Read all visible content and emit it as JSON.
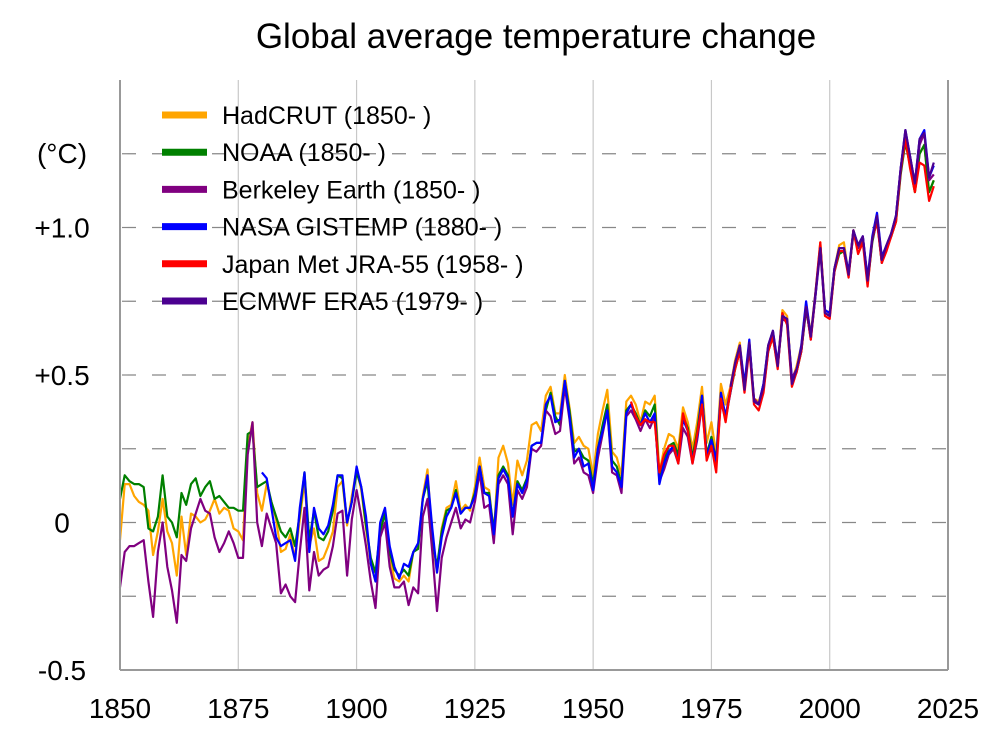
{
  "chart_data": {
    "type": "line",
    "title": "Global average temperature change",
    "ylabel": "(°C)",
    "xlim": [
      1850,
      2025
    ],
    "ylim": [
      -0.5,
      1.5
    ],
    "x_ticks": [
      1850,
      1875,
      1900,
      1925,
      1950,
      1975,
      2000,
      2025
    ],
    "x_tick_labels": [
      "1850",
      "1875",
      "1900",
      "1925",
      "1950",
      "1975",
      "2000",
      "2025"
    ],
    "y_ticks": [
      -0.5,
      0,
      0.5,
      1.0
    ],
    "y_tick_labels": [
      "-0.5",
      "0",
      "+0.5",
      "+1.0"
    ],
    "grid": "on (dashed horizontal every 0.25, solid vertical every 25 years)",
    "legend": "top-left",
    "series": [
      {
        "name": "HadCRUT (1850- )",
        "color": "#ffa500",
        "start_year": 1850,
        "values": [
          -0.06,
          0.13,
          0.13,
          0.09,
          0.07,
          0.06,
          0.04,
          -0.11,
          -0.03,
          0.08,
          -0.03,
          -0.07,
          -0.18,
          0.02,
          -0.11,
          0.03,
          0.02,
          0.0,
          0.01,
          0.04,
          0.08,
          0.03,
          0.05,
          0.04,
          -0.02,
          -0.03,
          -0.06,
          0.26,
          0.34,
          0.1,
          0.04,
          0.13,
          0.07,
          0.01,
          -0.1,
          -0.09,
          -0.04,
          -0.12,
          0.01,
          0.14,
          -0.08,
          -0.02,
          -0.13,
          -0.12,
          -0.08,
          -0.03,
          0.12,
          0.14,
          -0.01,
          0.09,
          0.18,
          0.11,
          -0.02,
          -0.14,
          -0.2,
          -0.03,
          0.04,
          -0.12,
          -0.19,
          -0.2,
          -0.18,
          -0.2,
          -0.1,
          -0.08,
          0.09,
          0.18,
          -0.06,
          -0.17,
          -0.02,
          0.05,
          0.06,
          0.14,
          0.04,
          0.06,
          0.04,
          0.12,
          0.22,
          0.12,
          0.11,
          -0.04,
          0.22,
          0.26,
          0.2,
          0.06,
          0.21,
          0.16,
          0.21,
          0.33,
          0.34,
          0.31,
          0.43,
          0.46,
          0.37,
          0.37,
          0.5,
          0.39,
          0.27,
          0.29,
          0.26,
          0.25,
          0.16,
          0.3,
          0.38,
          0.45,
          0.24,
          0.22,
          0.16,
          0.41,
          0.43,
          0.4,
          0.34,
          0.41,
          0.4,
          0.43,
          0.17,
          0.25,
          0.3,
          0.29,
          0.25,
          0.39,
          0.34,
          0.25,
          0.34,
          0.46,
          0.27,
          0.34,
          0.23,
          0.47,
          0.4,
          0.46,
          0.55,
          0.61,
          0.45,
          0.61,
          0.42,
          0.41,
          0.46,
          0.6,
          0.64,
          0.53,
          0.72,
          0.7,
          0.48,
          0.53,
          0.6,
          0.74,
          0.64,
          0.78,
          0.95,
          0.72,
          0.71,
          0.86,
          0.94,
          0.95,
          0.84,
          0.99,
          0.93,
          0.96,
          0.82,
          0.96,
          1.04,
          0.9,
          0.94,
          0.98,
          1.03,
          1.19,
          1.29,
          1.21,
          1.12,
          1.25,
          1.28,
          1.12,
          1.16
        ]
      },
      {
        "name": "NOAA (1850- )",
        "color": "#008000",
        "start_year": 1850,
        "values": [
          0.08,
          0.16,
          0.14,
          0.13,
          0.13,
          0.12,
          -0.02,
          -0.03,
          0.02,
          0.16,
          0.02,
          0.0,
          -0.05,
          0.1,
          0.06,
          0.13,
          0.15,
          0.09,
          0.12,
          0.14,
          0.08,
          0.09,
          0.07,
          0.05,
          0.05,
          0.04,
          0.04,
          0.3,
          0.31,
          0.12,
          0.13,
          0.14,
          0.07,
          0.02,
          -0.03,
          -0.05,
          -0.02,
          -0.08,
          0.03,
          0.17,
          -0.06,
          0.04,
          -0.05,
          -0.06,
          -0.03,
          0.04,
          0.16,
          0.15,
          0.0,
          0.07,
          0.17,
          0.12,
          -0.01,
          -0.12,
          -0.17,
          -0.03,
          0.03,
          -0.1,
          -0.16,
          -0.18,
          -0.16,
          -0.18,
          -0.1,
          -0.09,
          0.08,
          0.14,
          -0.06,
          -0.15,
          -0.03,
          0.04,
          0.05,
          0.11,
          0.03,
          0.05,
          0.05,
          0.1,
          0.19,
          0.1,
          0.1,
          -0.03,
          0.16,
          0.19,
          0.16,
          0.02,
          0.14,
          0.11,
          0.15,
          0.26,
          0.27,
          0.27,
          0.38,
          0.44,
          0.36,
          0.33,
          0.48,
          0.38,
          0.24,
          0.25,
          0.22,
          0.21,
          0.13,
          0.25,
          0.33,
          0.4,
          0.21,
          0.19,
          0.13,
          0.38,
          0.4,
          0.37,
          0.33,
          0.38,
          0.36,
          0.4,
          0.15,
          0.21,
          0.26,
          0.27,
          0.23,
          0.36,
          0.32,
          0.22,
          0.31,
          0.43,
          0.23,
          0.29,
          0.21,
          0.43,
          0.36,
          0.44,
          0.52,
          0.58,
          0.45,
          0.6,
          0.41,
          0.4,
          0.45,
          0.58,
          0.63,
          0.53,
          0.7,
          0.68,
          0.47,
          0.51,
          0.58,
          0.72,
          0.63,
          0.77,
          0.94,
          0.71,
          0.7,
          0.85,
          0.91,
          0.92,
          0.84,
          0.98,
          0.93,
          0.96,
          0.81,
          0.95,
          1.03,
          0.88,
          0.93,
          0.97,
          1.02,
          1.18,
          1.29,
          1.21,
          1.12,
          1.25,
          1.28,
          1.12,
          1.16
        ]
      },
      {
        "name": "Berkeley Earth (1850- )",
        "color": "#800080",
        "start_year": 1850,
        "values": [
          -0.22,
          -0.1,
          -0.08,
          -0.08,
          -0.07,
          -0.06,
          -0.2,
          -0.32,
          -0.1,
          0.0,
          -0.15,
          -0.23,
          -0.34,
          -0.11,
          -0.13,
          -0.02,
          0.03,
          0.08,
          0.04,
          0.03,
          -0.05,
          -0.1,
          -0.07,
          -0.03,
          -0.07,
          -0.12,
          -0.12,
          0.23,
          0.34,
          0.0,
          -0.08,
          0.03,
          -0.02,
          -0.07,
          -0.24,
          -0.21,
          -0.25,
          -0.27,
          -0.1,
          0.05,
          -0.23,
          -0.1,
          -0.18,
          -0.16,
          -0.15,
          -0.08,
          0.03,
          0.04,
          -0.18,
          0.01,
          0.11,
          0.02,
          -0.08,
          -0.2,
          -0.29,
          -0.05,
          0.0,
          -0.15,
          -0.22,
          -0.22,
          -0.2,
          -0.28,
          -0.22,
          -0.24,
          0.02,
          0.08,
          -0.1,
          -0.3,
          -0.12,
          -0.05,
          0.0,
          0.05,
          -0.02,
          0.01,
          0.0,
          0.07,
          0.17,
          0.05,
          0.06,
          -0.07,
          0.13,
          0.16,
          0.13,
          -0.04,
          0.11,
          0.08,
          0.12,
          0.25,
          0.24,
          0.26,
          0.38,
          0.36,
          0.3,
          0.31,
          0.46,
          0.35,
          0.2,
          0.22,
          0.17,
          0.16,
          0.1,
          0.22,
          0.3,
          0.38,
          0.17,
          0.16,
          0.1,
          0.36,
          0.38,
          0.35,
          0.31,
          0.35,
          0.32,
          0.36,
          0.14,
          0.18,
          0.23,
          0.25,
          0.2,
          0.32,
          0.29,
          0.2,
          0.28,
          0.4,
          0.22,
          0.25,
          0.2,
          0.41,
          0.35,
          0.44,
          0.53,
          0.59,
          0.46,
          0.61,
          0.42,
          0.4,
          0.47,
          0.59,
          0.63,
          0.53,
          0.69,
          0.68,
          0.49,
          0.52,
          0.58,
          0.73,
          0.62,
          0.77,
          0.92,
          0.71,
          0.7,
          0.85,
          0.92,
          0.92,
          0.84,
          0.98,
          0.93,
          0.97,
          0.82,
          0.96,
          1.03,
          0.88,
          0.93,
          0.97,
          1.04,
          1.2,
          1.32,
          1.24,
          1.14,
          1.28,
          1.32,
          1.16,
          1.18
        ]
      },
      {
        "name": "NASA GISTEMP (1880- )",
        "color": "#0000ff",
        "start_year": 1880,
        "values": [
          0.17,
          0.15,
          0.05,
          -0.05,
          -0.08,
          -0.07,
          -0.06,
          -0.13,
          0.05,
          0.17,
          -0.1,
          0.05,
          -0.02,
          -0.04,
          -0.01,
          0.06,
          0.16,
          0.16,
          0.0,
          0.07,
          0.19,
          0.12,
          0.02,
          -0.14,
          -0.2,
          0.0,
          0.05,
          -0.08,
          -0.15,
          -0.19,
          -0.14,
          -0.15,
          -0.1,
          -0.07,
          0.08,
          0.16,
          -0.02,
          -0.17,
          -0.05,
          0.02,
          0.05,
          0.1,
          0.03,
          0.05,
          0.05,
          0.09,
          0.19,
          0.1,
          0.09,
          -0.04,
          0.15,
          0.18,
          0.15,
          0.02,
          0.13,
          0.1,
          0.14,
          0.26,
          0.27,
          0.27,
          0.4,
          0.43,
          0.34,
          0.35,
          0.48,
          0.36,
          0.22,
          0.25,
          0.19,
          0.2,
          0.11,
          0.25,
          0.31,
          0.38,
          0.19,
          0.17,
          0.12,
          0.37,
          0.4,
          0.36,
          0.33,
          0.37,
          0.34,
          0.37,
          0.13,
          0.2,
          0.24,
          0.26,
          0.21,
          0.35,
          0.31,
          0.21,
          0.29,
          0.43,
          0.22,
          0.28,
          0.21,
          0.44,
          0.36,
          0.45,
          0.54,
          0.6,
          0.47,
          0.62,
          0.41,
          0.4,
          0.47,
          0.6,
          0.65,
          0.54,
          0.7,
          0.69,
          0.48,
          0.51,
          0.6,
          0.75,
          0.63,
          0.77,
          0.94,
          0.72,
          0.71,
          0.86,
          0.93,
          0.93,
          0.85,
          0.99,
          0.94,
          0.97,
          0.83,
          0.97,
          1.05,
          0.9,
          0.94,
          0.98,
          1.04,
          1.2,
          1.33,
          1.24,
          1.15,
          1.3,
          1.33,
          1.17,
          1.21
        ]
      },
      {
        "name": "Japan Met JRA-55 (1958- )",
        "color": "#ff0000",
        "start_year": 1958,
        "values": [
          0.41,
          0.36,
          0.33,
          0.35,
          0.34,
          0.34,
          0.17,
          0.23,
          0.26,
          0.26,
          0.2,
          0.37,
          0.31,
          0.2,
          0.3,
          0.4,
          0.21,
          0.26,
          0.17,
          0.42,
          0.34,
          0.45,
          0.52,
          0.58,
          0.44,
          0.59,
          0.4,
          0.38,
          0.44,
          0.58,
          0.63,
          0.52,
          0.71,
          0.67,
          0.46,
          0.51,
          0.58,
          0.73,
          0.62,
          0.78,
          0.95,
          0.7,
          0.69,
          0.85,
          0.92,
          0.92,
          0.83,
          0.99,
          0.91,
          0.95,
          0.8,
          0.96,
          1.02,
          0.88,
          0.92,
          0.97,
          1.02,
          1.19,
          1.3,
          1.2,
          1.12,
          1.22,
          1.21,
          1.09,
          1.14
        ]
      },
      {
        "name": "ECMWF ERA5 (1979- )",
        "color": "#4b0090",
        "start_year": 1979,
        "values": [
          0.46,
          0.54,
          0.6,
          0.45,
          0.61,
          0.41,
          0.4,
          0.46,
          0.6,
          0.65,
          0.53,
          0.7,
          0.69,
          0.47,
          0.52,
          0.59,
          0.73,
          0.63,
          0.78,
          0.93,
          0.71,
          0.7,
          0.86,
          0.93,
          0.93,
          0.84,
          0.99,
          0.94,
          0.97,
          0.82,
          0.96,
          1.04,
          0.89,
          0.94,
          0.98,
          1.04,
          1.2,
          1.33,
          1.24,
          1.15,
          1.3,
          1.32,
          1.17,
          1.22
        ]
      }
    ]
  }
}
